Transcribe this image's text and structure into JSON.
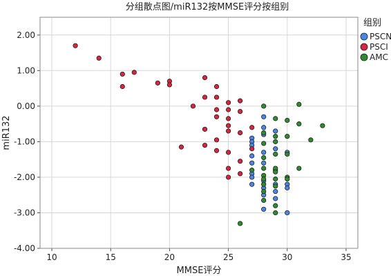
{
  "chart_data": {
    "type": "scatter",
    "title": "分组散点图/miR132按MMSE评分按组别",
    "xlabel": "MMSE评分",
    "ylabel": "miR132",
    "xlim": [
      9,
      36
    ],
    "ylim": [
      -4.0,
      2.5
    ],
    "x_ticks": [
      10,
      15,
      20,
      25,
      30,
      35
    ],
    "x_tick_labels": [
      "10",
      "15",
      "20",
      "25",
      "30",
      "35"
    ],
    "y_ticks": [
      -4,
      -3,
      -2,
      -1,
      0,
      1,
      2
    ],
    "y_tick_labels": [
      "-4.00",
      "-3.00",
      "-2.00",
      "-1.00",
      "0.00",
      "1.00",
      "2.00"
    ],
    "grid": true,
    "legend": {
      "title": "组别",
      "placement": "right"
    },
    "series": [
      {
        "name": "PSCN",
        "color": "#4a86e8",
        "points": [
          [
            27,
            -0.9
          ],
          [
            27,
            -1.0
          ],
          [
            27,
            -1.1
          ],
          [
            27,
            -1.4
          ],
          [
            27,
            -1.6
          ],
          [
            27,
            -1.9
          ],
          [
            27,
            -2.0
          ],
          [
            27,
            -2.2
          ],
          [
            28,
            -0.3
          ],
          [
            28,
            -0.6
          ],
          [
            28,
            -0.8
          ],
          [
            28,
            -1.3
          ],
          [
            28,
            -1.6
          ],
          [
            28,
            -2.1
          ],
          [
            28,
            -2.3
          ],
          [
            28,
            -2.5
          ],
          [
            28,
            -2.9
          ],
          [
            29,
            -0.7
          ],
          [
            29,
            -1.2
          ],
          [
            29,
            -1.8
          ],
          [
            29,
            -2.2
          ],
          [
            29,
            -2.4
          ],
          [
            29,
            -2.6
          ],
          [
            30,
            -1.3
          ],
          [
            30,
            -2.2
          ],
          [
            30,
            -2.3
          ],
          [
            30,
            -3.0
          ]
        ]
      },
      {
        "name": "PSCI",
        "color": "#d7263d",
        "points": [
          [
            12,
            1.7
          ],
          [
            14,
            1.35
          ],
          [
            16,
            0.9
          ],
          [
            16,
            0.55
          ],
          [
            17,
            0.95
          ],
          [
            19,
            0.65
          ],
          [
            20,
            0.7
          ],
          [
            20,
            0.6
          ],
          [
            21,
            -1.15
          ],
          [
            22,
            0.0
          ],
          [
            23,
            0.8
          ],
          [
            23,
            0.25
          ],
          [
            23,
            -0.65
          ],
          [
            23,
            -1.1
          ],
          [
            24,
            0.55
          ],
          [
            24,
            0.25
          ],
          [
            24,
            -0.1
          ],
          [
            24,
            -0.3
          ],
          [
            24,
            -0.95
          ],
          [
            24,
            -1.25
          ],
          [
            25,
            0.1
          ],
          [
            25,
            -0.1
          ],
          [
            25,
            -0.35
          ],
          [
            25,
            -0.55
          ],
          [
            25,
            -0.7
          ],
          [
            25,
            -1.3
          ],
          [
            25,
            -1.75
          ],
          [
            25,
            -2.0
          ],
          [
            26,
            0.15
          ],
          [
            26,
            -0.15
          ],
          [
            26,
            -0.75
          ],
          [
            26,
            -1.55
          ],
          [
            26,
            -1.9
          ],
          [
            27,
            -0.6
          ],
          [
            27,
            -1.2
          ]
        ]
      },
      {
        "name": "AMC",
        "color": "#2e8b2e",
        "points": [
          [
            26,
            -3.3
          ],
          [
            27,
            -1.8
          ],
          [
            28,
            0.0
          ],
          [
            28,
            -0.75
          ],
          [
            28,
            -1.05
          ],
          [
            28,
            -1.45
          ],
          [
            28,
            -1.75
          ],
          [
            28,
            -1.95
          ],
          [
            28,
            -2.05
          ],
          [
            28,
            -2.2
          ],
          [
            28,
            -2.4
          ],
          [
            28,
            -2.65
          ],
          [
            29,
            -0.35
          ],
          [
            29,
            -0.85
          ],
          [
            29,
            -1.0
          ],
          [
            29,
            -1.35
          ],
          [
            29,
            -1.75
          ],
          [
            29,
            -1.85
          ],
          [
            29,
            -2.05
          ],
          [
            29,
            -2.25
          ],
          [
            29,
            -2.8
          ],
          [
            29,
            -3.0
          ],
          [
            30,
            -0.4
          ],
          [
            30,
            -0.85
          ],
          [
            30,
            -1.35
          ],
          [
            30,
            -2.0
          ],
          [
            30,
            -2.05
          ],
          [
            31,
            0.05
          ],
          [
            31,
            -0.5
          ],
          [
            31,
            -1.75
          ],
          [
            32,
            -0.95
          ],
          [
            33,
            -0.55
          ]
        ]
      }
    ]
  }
}
